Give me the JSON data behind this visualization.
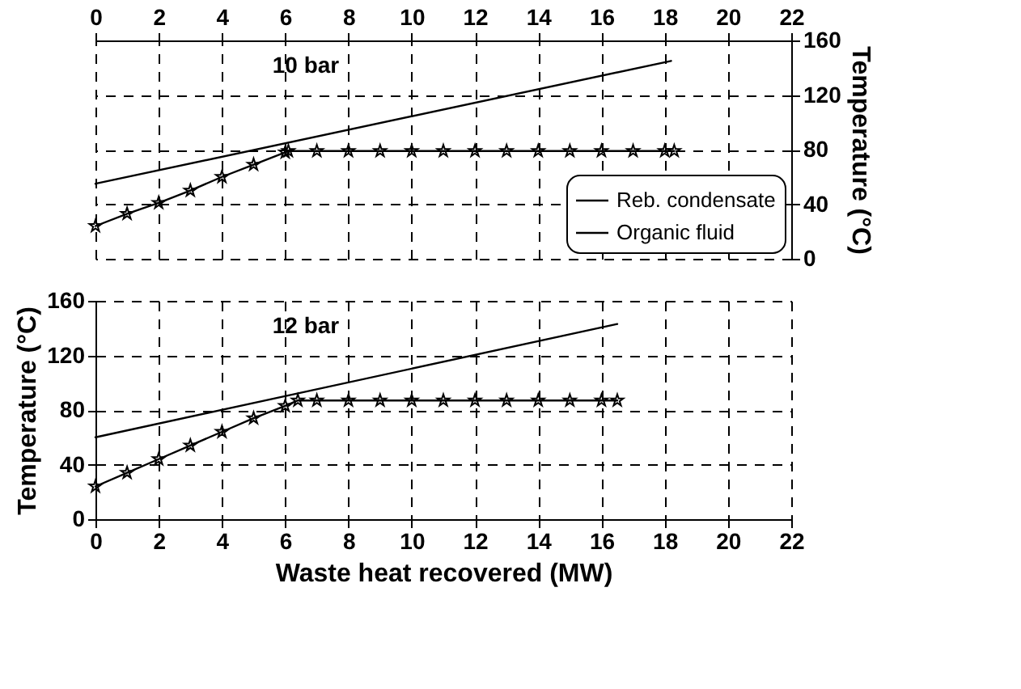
{
  "chart_data": [
    {
      "type": "line",
      "annotations": [
        "10 bar"
      ],
      "xlim": [
        0,
        22
      ],
      "xticks": [
        0,
        2,
        4,
        6,
        8,
        10,
        12,
        14,
        16,
        18,
        20,
        22
      ],
      "ylim": [
        0,
        160
      ],
      "yticks": [
        0,
        40,
        80,
        120,
        160
      ],
      "ylabel": "Temperature (°C)",
      "grid": true,
      "legend": "bottom right",
      "series": [
        {
          "name": "Reb. condensate",
          "color": "#000000",
          "marker": "none",
          "x": [
            0,
            18.2
          ],
          "values": [
            55,
            145
          ]
        },
        {
          "name": "Organic fluid",
          "color": "#000000",
          "marker": "star",
          "x": [
            0,
            1,
            2,
            3,
            4,
            5,
            6,
            6.1,
            7,
            8,
            9,
            10,
            11,
            12,
            13,
            14,
            15,
            16,
            17,
            18,
            18.3
          ],
          "values": [
            24,
            33,
            41,
            50,
            60,
            69,
            78,
            79,
            79,
            79,
            79,
            79,
            79,
            79,
            79,
            79,
            79,
            79,
            79,
            79,
            79
          ]
        }
      ]
    },
    {
      "type": "line",
      "annotations": [
        "12 bar"
      ],
      "xlim": [
        0,
        22
      ],
      "xticks": [
        0,
        2,
        4,
        6,
        8,
        10,
        12,
        14,
        16,
        18,
        20,
        22
      ],
      "ylim": [
        0,
        160
      ],
      "yticks": [
        0,
        40,
        80,
        120,
        160
      ],
      "xlabel": "Waste heat recovered (MW)",
      "ylabel": "Temperature (°C)",
      "grid": true,
      "series": [
        {
          "color": "#000000",
          "marker": "none",
          "x": [
            0,
            16.5
          ],
          "values": [
            60,
            143
          ]
        },
        {
          "color": "#000000",
          "marker": "star",
          "x": [
            0,
            1,
            2,
            3,
            4,
            5,
            6,
            6.4,
            7,
            8,
            9,
            10,
            11,
            12,
            13,
            14,
            15,
            16,
            16.5
          ],
          "values": [
            24,
            34,
            44,
            54,
            64,
            74,
            83,
            87,
            87,
            87,
            87,
            87,
            87,
            87,
            87,
            87,
            87,
            87,
            87
          ]
        }
      ]
    }
  ]
}
